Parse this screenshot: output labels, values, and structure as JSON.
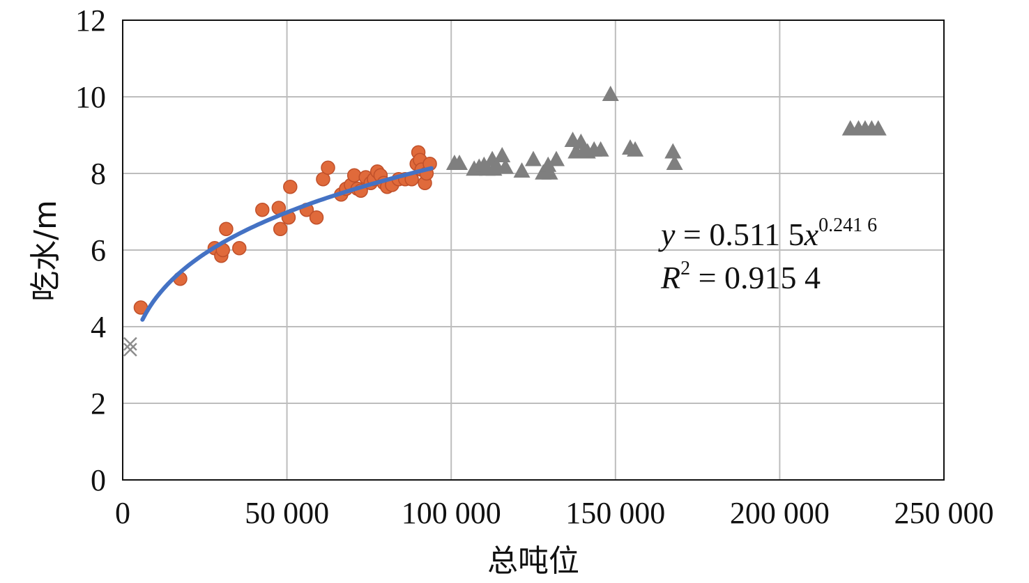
{
  "chart_data": {
    "type": "scatter",
    "title": "",
    "xlabel": "总吨位",
    "ylabel": "吃水/m",
    "xlim": [
      0,
      250000
    ],
    "ylim": [
      0,
      12
    ],
    "grid": true,
    "x_ticks": [
      0,
      50000,
      100000,
      150000,
      200000,
      250000
    ],
    "x_tick_labels": [
      "0",
      "50 000",
      "100 000",
      "150 000",
      "200 000",
      "250 000"
    ],
    "y_ticks": [
      0,
      2,
      4,
      6,
      8,
      10,
      12
    ],
    "y_tick_labels": [
      "0",
      "2",
      "4",
      "6",
      "8",
      "10",
      "12"
    ],
    "series": [
      {
        "marker": "x",
        "color": "#8c8c8c",
        "points": [
          [
            2300,
            3.55
          ],
          [
            2300,
            3.4
          ]
        ]
      },
      {
        "marker": "circle",
        "color": "#e06a3b",
        "points": [
          [
            5500,
            4.5
          ],
          [
            17500,
            5.25
          ],
          [
            28000,
            6.05
          ],
          [
            30000,
            5.85
          ],
          [
            30500,
            6.0
          ],
          [
            31500,
            6.55
          ],
          [
            35500,
            6.05
          ],
          [
            42500,
            7.05
          ],
          [
            47500,
            7.1
          ],
          [
            48000,
            6.55
          ],
          [
            50500,
            6.85
          ],
          [
            51000,
            7.65
          ],
          [
            56000,
            7.05
          ],
          [
            59000,
            6.85
          ],
          [
            61000,
            7.85
          ],
          [
            62500,
            8.15
          ],
          [
            66500,
            7.45
          ],
          [
            68000,
            7.6
          ],
          [
            69500,
            7.7
          ],
          [
            70500,
            7.95
          ],
          [
            71500,
            7.6
          ],
          [
            72500,
            7.55
          ],
          [
            74000,
            7.9
          ],
          [
            75500,
            7.75
          ],
          [
            76500,
            7.85
          ],
          [
            77500,
            8.05
          ],
          [
            78500,
            7.95
          ],
          [
            79500,
            7.75
          ],
          [
            80500,
            7.65
          ],
          [
            82000,
            7.7
          ],
          [
            84000,
            7.85
          ],
          [
            86000,
            7.85
          ],
          [
            88000,
            7.85
          ],
          [
            89500,
            8.25
          ],
          [
            90000,
            8.55
          ],
          [
            90500,
            8.35
          ],
          [
            91000,
            8.1
          ],
          [
            92000,
            7.75
          ],
          [
            92500,
            8.0
          ],
          [
            93500,
            8.25
          ]
        ]
      },
      {
        "marker": "triangle",
        "color": "#7f7f7f",
        "points": [
          [
            101000,
            8.25
          ],
          [
            102500,
            8.25
          ],
          [
            107000,
            8.1
          ],
          [
            108500,
            8.15
          ],
          [
            110000,
            8.2
          ],
          [
            111000,
            8.1
          ],
          [
            112500,
            8.35
          ],
          [
            113000,
            8.1
          ],
          [
            114000,
            8.15
          ],
          [
            115500,
            8.45
          ],
          [
            116500,
            8.15
          ],
          [
            121500,
            8.05
          ],
          [
            125000,
            8.35
          ],
          [
            128000,
            8.0
          ],
          [
            129500,
            8.2
          ],
          [
            130000,
            8.0
          ],
          [
            132000,
            8.35
          ],
          [
            137000,
            8.85
          ],
          [
            138000,
            8.55
          ],
          [
            139500,
            8.8
          ],
          [
            140500,
            8.6
          ],
          [
            141500,
            8.55
          ],
          [
            143500,
            8.6
          ],
          [
            145500,
            8.6
          ],
          [
            148500,
            10.05
          ],
          [
            154500,
            8.65
          ],
          [
            156000,
            8.6
          ],
          [
            167500,
            8.55
          ],
          [
            168000,
            8.25
          ],
          [
            221500,
            9.15
          ],
          [
            224000,
            9.15
          ],
          [
            226000,
            9.15
          ],
          [
            228000,
            9.15
          ],
          [
            230000,
            9.15
          ]
        ]
      }
    ],
    "trendline": {
      "type": "power",
      "a": 0.5115,
      "b": 0.2416,
      "x_range": [
        6000,
        94000
      ],
      "color": "#4472c4"
    },
    "annotations": {
      "equation": "y = 0.511 5x0.241 6",
      "eq_y": "y",
      "eq_mid": " = 0.511 5",
      "eq_x": "x",
      "eq_exp": "0.241 6",
      "r2": "R2 = 0.915 4",
      "r2_r": "R",
      "r2_exp": "2",
      "r2_val": " = 0.915 4"
    }
  }
}
